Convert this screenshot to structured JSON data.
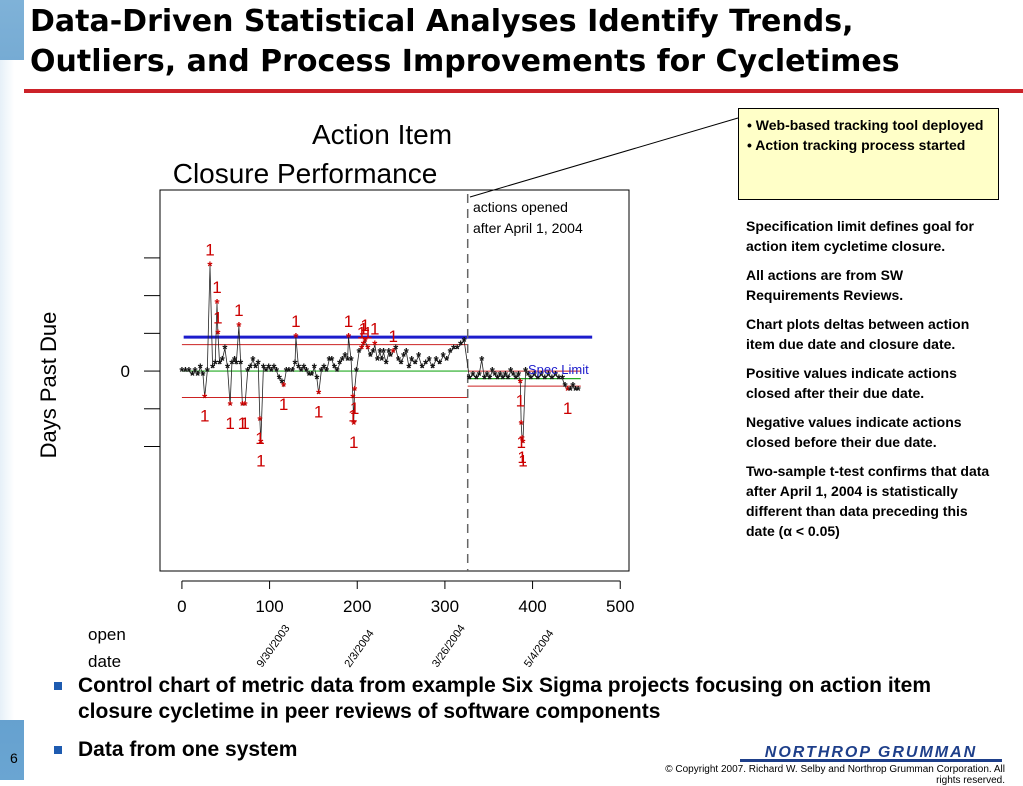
{
  "slide": {
    "title_line1": "Data-Driven Statistical Analyses Identify Trends,",
    "title_line2": "Outliers, and Process Improvements for Cycletimes",
    "page_number": "6",
    "logo_text": "NORTHROP GRUMMAN",
    "copyright": "© Copyright 2007. Richard W. Selby and Northrop Grumman Corporation. All rights reserved."
  },
  "callout": {
    "line1": "• Web-based tracking tool deployed",
    "line2": "• Action tracking process started"
  },
  "notes": [
    "Specification limit defines goal for action item cycletime closure.",
    "All actions are from SW Requirements Reviews.",
    "Chart plots deltas between action item due date and closure date.",
    "Positive values indicate actions closed after their due date.",
    "Negative values indicate actions closed before their due date.",
    "Two-sample t-test confirms that data after April 1, 2004 is statistically different than data preceding this date (α < 0.05)"
  ],
  "bullets": [
    "Control chart of metric data from example Six Sigma projects focusing on action item closure cycletime in peer reviews of software components",
    "Data from one system"
  ],
  "chart_data": {
    "type": "scatter",
    "title_line1": "Action Item",
    "title_line2": "Closure Performance",
    "ylabel": "Days Past Due",
    "xlabel_line1": "open",
    "xlabel_line2": "date",
    "xlim": [
      -25,
      510
    ],
    "ylim": [
      -5.3,
      4.8
    ],
    "x_ticks": [
      "0",
      "100",
      "200",
      "300",
      "400",
      "500"
    ],
    "y_ticks": [
      "0"
    ],
    "date_labels": [
      {
        "x": 80,
        "label": "9/30/2003"
      },
      {
        "x": 180,
        "label": "2/3/2004"
      },
      {
        "x": 280,
        "label": "3/26/2004"
      },
      {
        "x": 385,
        "label": "5/4/2004"
      }
    ],
    "split_x": 326,
    "split_annotation_line1": "actions opened",
    "split_annotation_line2": "after April 1, 2004",
    "spec_limit": {
      "y": 0.9,
      "label": "Spec Limit",
      "color": "#1c1ccc"
    },
    "control_lines": [
      {
        "x_from": 0,
        "x_to": 326,
        "center": 0.0,
        "ucl": 0.7,
        "lcl": -0.7
      },
      {
        "x_from": 326,
        "x_to": 455,
        "center": -0.2,
        "ucl": 0.0,
        "lcl": -0.4
      }
    ],
    "colors": {
      "points": "#111111",
      "flagged": "#cc0000",
      "centerline": "#22aa22",
      "limits": "#cc2222",
      "divider": "#666666"
    },
    "values": [
      {
        "x": 0,
        "y": 0
      },
      {
        "x": 4,
        "y": 0
      },
      {
        "x": 8,
        "y": 0
      },
      {
        "x": 12,
        "y": -0.1
      },
      {
        "x": 15,
        "y": 0
      },
      {
        "x": 18,
        "y": -0.1
      },
      {
        "x": 21,
        "y": 0.1
      },
      {
        "x": 24,
        "y": -0.1
      },
      {
        "x": 26,
        "y": -0.7,
        "flag": true
      },
      {
        "x": 29,
        "y": 0
      },
      {
        "x": 32,
        "y": 2.8,
        "flag": true
      },
      {
        "x": 35,
        "y": 0.1
      },
      {
        "x": 38,
        "y": 0.2
      },
      {
        "x": 40,
        "y": 1.8,
        "flag": true
      },
      {
        "x": 41,
        "y": 1.0,
        "flag": true
      },
      {
        "x": 43,
        "y": 0.2
      },
      {
        "x": 46,
        "y": 0.3
      },
      {
        "x": 49,
        "y": 0.6
      },
      {
        "x": 52,
        "y": 0.1
      },
      {
        "x": 55,
        "y": -0.9,
        "flag": true
      },
      {
        "x": 57,
        "y": 0.2
      },
      {
        "x": 60,
        "y": 0.3
      },
      {
        "x": 62,
        "y": 0.2
      },
      {
        "x": 65,
        "y": 1.2,
        "flag": true
      },
      {
        "x": 67,
        "y": 0.2
      },
      {
        "x": 69,
        "y": -0.9,
        "flag": true
      },
      {
        "x": 72,
        "y": -0.9,
        "flag": true
      },
      {
        "x": 75,
        "y": 0
      },
      {
        "x": 78,
        "y": 0.1
      },
      {
        "x": 81,
        "y": 0.3
      },
      {
        "x": 84,
        "y": 0.1
      },
      {
        "x": 87,
        "y": 0.2
      },
      {
        "x": 89,
        "y": -1.3,
        "flag": true
      },
      {
        "x": 90,
        "y": -1.9,
        "flag": true
      },
      {
        "x": 93,
        "y": 0.1
      },
      {
        "x": 96,
        "y": 0
      },
      {
        "x": 99,
        "y": 0.1
      },
      {
        "x": 102,
        "y": 0
      },
      {
        "x": 105,
        "y": 0.1
      },
      {
        "x": 108,
        "y": 0
      },
      {
        "x": 111,
        "y": -0.2
      },
      {
        "x": 114,
        "y": -0.3
      },
      {
        "x": 116,
        "y": -0.4,
        "flag": true
      },
      {
        "x": 119,
        "y": 0
      },
      {
        "x": 122,
        "y": 0
      },
      {
        "x": 126,
        "y": 0
      },
      {
        "x": 129,
        "y": 0.2
      },
      {
        "x": 130,
        "y": 0.9,
        "flag": true
      },
      {
        "x": 133,
        "y": 0.1
      },
      {
        "x": 136,
        "y": 0
      },
      {
        "x": 139,
        "y": 0.1
      },
      {
        "x": 142,
        "y": 0
      },
      {
        "x": 145,
        "y": -0.1
      },
      {
        "x": 148,
        "y": -0.1
      },
      {
        "x": 151,
        "y": 0.1
      },
      {
        "x": 154,
        "y": -0.2
      },
      {
        "x": 156,
        "y": -0.6,
        "flag": true
      },
      {
        "x": 159,
        "y": 0
      },
      {
        "x": 162,
        "y": 0.1
      },
      {
        "x": 165,
        "y": 0
      },
      {
        "x": 168,
        "y": 0.3
      },
      {
        "x": 171,
        "y": 0.3
      },
      {
        "x": 174,
        "y": 0.1
      },
      {
        "x": 177,
        "y": 0
      },
      {
        "x": 180,
        "y": 0.2
      },
      {
        "x": 183,
        "y": 0.3
      },
      {
        "x": 186,
        "y": 0.4
      },
      {
        "x": 189,
        "y": 0.3
      },
      {
        "x": 190,
        "y": 0.9,
        "flag": true
      },
      {
        "x": 193,
        "y": 0.3
      },
      {
        "x": 195,
        "y": -0.7,
        "flag": true
      },
      {
        "x": 196,
        "y": -1.4,
        "flag": true
      },
      {
        "x": 197,
        "y": -0.5,
        "flag": true
      },
      {
        "x": 199,
        "y": 0
      },
      {
        "x": 202,
        "y": 0.5
      },
      {
        "x": 205,
        "y": 0.6,
        "flag": true
      },
      {
        "x": 207,
        "y": 0.7,
        "flag": true
      },
      {
        "x": 209,
        "y": 0.8,
        "flag": true
      },
      {
        "x": 212,
        "y": 0.6,
        "flag": true
      },
      {
        "x": 215,
        "y": 0.4
      },
      {
        "x": 218,
        "y": 0.5
      },
      {
        "x": 220,
        "y": 0.7,
        "flag": true
      },
      {
        "x": 223,
        "y": 0.3
      },
      {
        "x": 226,
        "y": 0.5
      },
      {
        "x": 228,
        "y": 0.3
      },
      {
        "x": 230,
        "y": 0.5
      },
      {
        "x": 233,
        "y": 0.2
      },
      {
        "x": 236,
        "y": 0.5
      },
      {
        "x": 238,
        "y": 0.4
      },
      {
        "x": 241,
        "y": 0.5,
        "flag": true
      },
      {
        "x": 244,
        "y": 0.6
      },
      {
        "x": 247,
        "y": 0.3
      },
      {
        "x": 250,
        "y": 0.2
      },
      {
        "x": 253,
        "y": 0.4
      },
      {
        "x": 256,
        "y": 0.5
      },
      {
        "x": 259,
        "y": 0.1
      },
      {
        "x": 262,
        "y": 0.3
      },
      {
        "x": 266,
        "y": 0.2
      },
      {
        "x": 270,
        "y": 0.4
      },
      {
        "x": 274,
        "y": 0.1
      },
      {
        "x": 278,
        "y": 0.2
      },
      {
        "x": 282,
        "y": 0.3
      },
      {
        "x": 286,
        "y": 0.1
      },
      {
        "x": 290,
        "y": 0.3
      },
      {
        "x": 294,
        "y": 0.2
      },
      {
        "x": 298,
        "y": 0.4
      },
      {
        "x": 302,
        "y": 0.3
      },
      {
        "x": 306,
        "y": 0.5
      },
      {
        "x": 310,
        "y": 0.6
      },
      {
        "x": 314,
        "y": 0.6
      },
      {
        "x": 318,
        "y": 0.7
      },
      {
        "x": 322,
        "y": 0.8
      },
      {
        "x": 328,
        "y": -0.2
      },
      {
        "x": 332,
        "y": -0.1
      },
      {
        "x": 336,
        "y": -0.2
      },
      {
        "x": 339,
        "y": -0.1
      },
      {
        "x": 342,
        "y": 0.3
      },
      {
        "x": 345,
        "y": -0.2
      },
      {
        "x": 348,
        "y": -0.1
      },
      {
        "x": 351,
        "y": -0.2
      },
      {
        "x": 354,
        "y": 0
      },
      {
        "x": 357,
        "y": -0.1
      },
      {
        "x": 360,
        "y": -0.2
      },
      {
        "x": 363,
        "y": -0.1
      },
      {
        "x": 366,
        "y": -0.2
      },
      {
        "x": 369,
        "y": -0.1
      },
      {
        "x": 372,
        "y": -0.2
      },
      {
        "x": 375,
        "y": 0
      },
      {
        "x": 378,
        "y": -0.1
      },
      {
        "x": 381,
        "y": -0.2
      },
      {
        "x": 384,
        "y": -0.1
      },
      {
        "x": 386,
        "y": -0.3,
        "flag": true
      },
      {
        "x": 387,
        "y": -1.4,
        "flag": true
      },
      {
        "x": 388,
        "y": -1.8,
        "flag": true
      },
      {
        "x": 389,
        "y": -1.9,
        "flag": true
      },
      {
        "x": 392,
        "y": 0
      },
      {
        "x": 395,
        "y": -0.1
      },
      {
        "x": 398,
        "y": -0.2
      },
      {
        "x": 402,
        "y": -0.1
      },
      {
        "x": 406,
        "y": -0.2
      },
      {
        "x": 410,
        "y": -0.1
      },
      {
        "x": 414,
        "y": -0.2
      },
      {
        "x": 418,
        "y": -0.1
      },
      {
        "x": 422,
        "y": -0.2
      },
      {
        "x": 426,
        "y": -0.1
      },
      {
        "x": 430,
        "y": -0.2
      },
      {
        "x": 434,
        "y": -0.2
      },
      {
        "x": 437,
        "y": -0.4
      },
      {
        "x": 440,
        "y": -0.5,
        "flag": true
      },
      {
        "x": 443,
        "y": -0.5
      },
      {
        "x": 446,
        "y": -0.4
      },
      {
        "x": 449,
        "y": -0.5
      },
      {
        "x": 452,
        "y": -0.5
      }
    ]
  }
}
